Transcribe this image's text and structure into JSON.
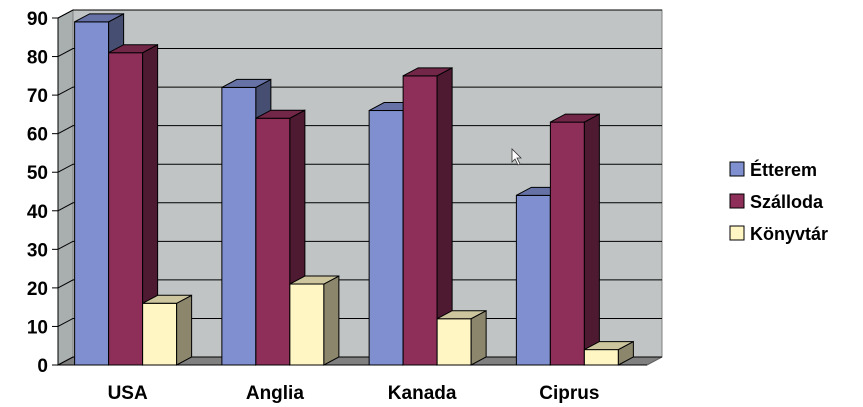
{
  "chart_data": {
    "type": "bar",
    "style": "3d-clustered-column",
    "categories": [
      "USA",
      "Anglia",
      "Kanada",
      "Ciprus"
    ],
    "series": [
      {
        "name": "Étterem",
        "values": [
          89,
          72,
          66,
          44
        ],
        "color": "#7F8FD0"
      },
      {
        "name": "Szálloda",
        "values": [
          81,
          64,
          75,
          63
        ],
        "color": "#8E2F5A"
      },
      {
        "name": "Könyvtár",
        "values": [
          16,
          21,
          12,
          4
        ],
        "color": "#FFF6C4"
      }
    ],
    "ylim": [
      0,
      90
    ],
    "yticks": [
      0,
      10,
      20,
      30,
      40,
      50,
      60,
      70,
      80,
      90
    ],
    "grid": true,
    "legend": "right",
    "wall_color": "#C0C4C4",
    "floor_color": "#808080"
  }
}
